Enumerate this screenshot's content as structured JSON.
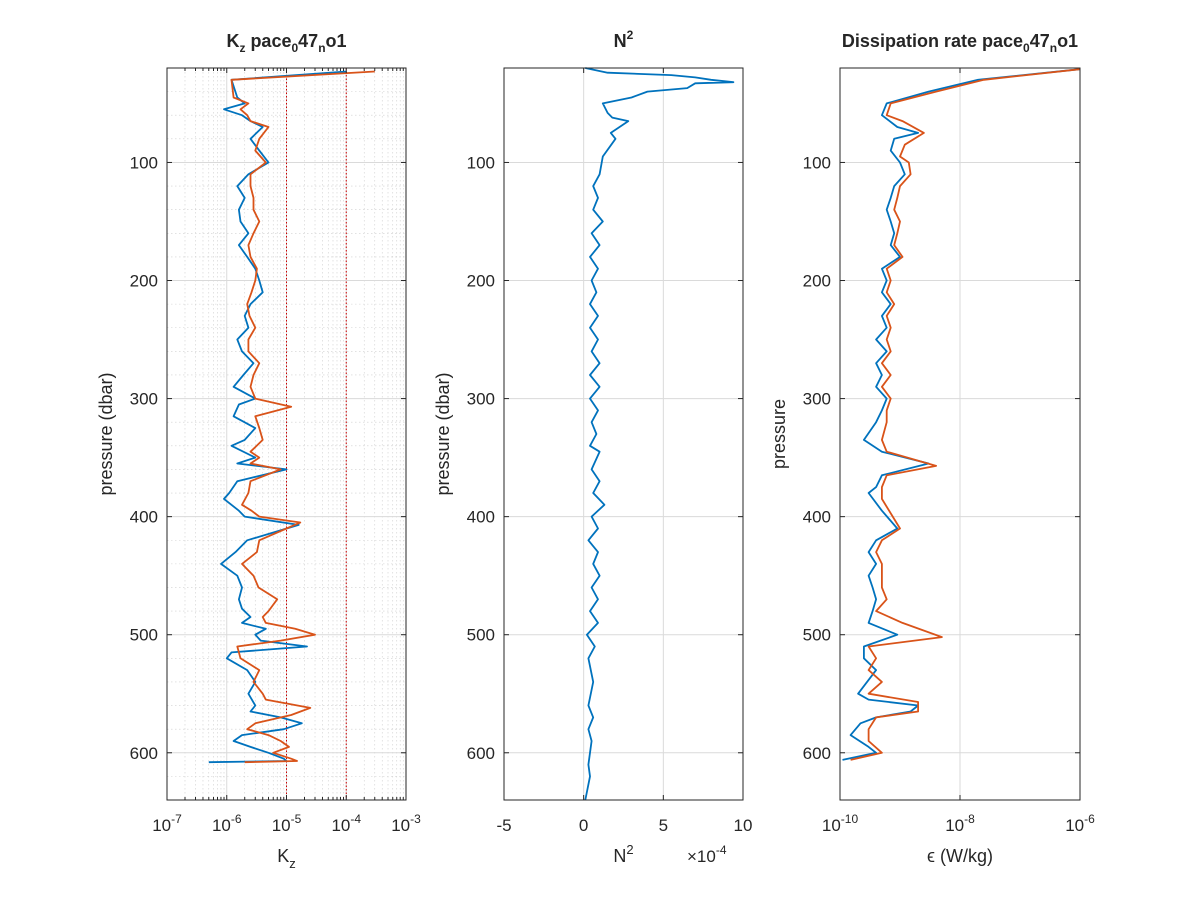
{
  "figure": {
    "background": "#ffffff",
    "series_colors": [
      "#0072bd",
      "#d95319"
    ]
  },
  "chart_data": [
    {
      "type": "line",
      "title": "K",
      "title_sub": "z",
      "title_rest": " pace",
      "title_sub2": "0",
      "title_rest2": "47",
      "title_sub3": "n",
      "title_rest3": "o1",
      "xlabel": "K",
      "xlabel_sub": "z",
      "ylabel": "pressure (dbar)",
      "xscale": "log",
      "xlim": [
        1e-07,
        0.001
      ],
      "xticks": [
        {
          "base": "10",
          "exp": "-7"
        },
        {
          "base": "10",
          "exp": "-6"
        },
        {
          "base": "10",
          "exp": "-5"
        },
        {
          "base": "10",
          "exp": "-4"
        },
        {
          "base": "10",
          "exp": "-3"
        }
      ],
      "ylim": [
        640,
        20
      ],
      "yticks": [
        "100",
        "200",
        "300",
        "400",
        "500",
        "600"
      ],
      "grid": "major and minor (dotted)",
      "reference_lines": {
        "x": [
          1e-05,
          0.0001
        ],
        "color": "#cc0000",
        "style": "dotted"
      },
      "series": [
        {
          "color": "#0072bd",
          "x": [
            0.0001,
            1.2e-06,
            1.5e-06,
            2e-06,
            9e-07,
            1.8e-06,
            2.5e-06,
            4e-06,
            2.5e-06,
            3.5e-06,
            5e-06,
            2.3e-06,
            1.5e-06,
            2e-06,
            1.6e-06,
            1.7e-06,
            2.3e-06,
            1.6e-06,
            2.2e-06,
            3e-06,
            3.5e-06,
            4e-06,
            2.5e-06,
            2e-06,
            2.3e-06,
            1.5e-06,
            1.8e-06,
            2.8e-06,
            1.9e-06,
            1.3e-06,
            3e-06,
            1.6e-06,
            1.3e-06,
            3e-06,
            2e-06,
            1.2e-06,
            3e-06,
            1.5e-06,
            1e-05,
            1.5e-06,
            1.1e-06,
            9e-07,
            1.6e-06,
            2e-06,
            1.6e-05,
            2.2e-06,
            1.4e-06,
            8e-07,
            1.5e-06,
            1.8e-06,
            1.6e-06,
            1.8e-06,
            2.5e-06,
            1.8e-06,
            4.5e-06,
            3e-06,
            3.7e-06,
            2.2e-05,
            1.2e-06,
            1e-06,
            2.2e-06,
            3e-06,
            2.3e-06,
            3e-06,
            2.5e-06,
            8e-06,
            1.8e-05,
            9e-06,
            1.8e-06,
            1.3e-06,
            2.5e-06,
            5e-06,
            9e-06,
            1e-05,
            5e-07
          ],
          "y": [
            23,
            30,
            45,
            50,
            55,
            60,
            65,
            70,
            80,
            90,
            100,
            110,
            120,
            130,
            140,
            150,
            160,
            170,
            180,
            190,
            200,
            210,
            220,
            230,
            240,
            250,
            260,
            270,
            280,
            290,
            300,
            305,
            315,
            325,
            335,
            340,
            350,
            355,
            360,
            370,
            380,
            385,
            395,
            400,
            407,
            420,
            430,
            440,
            450,
            460,
            470,
            478,
            485,
            490,
            495,
            500,
            505,
            510,
            515,
            520,
            530,
            540,
            550,
            560,
            565,
            570,
            575,
            580,
            585,
            590,
            595,
            600,
            605,
            607,
            608
          ]
        },
        {
          "color": "#d95319",
          "x": [
            0.0003,
            1.2e-06,
            1.3e-06,
            2.3e-06,
            1.7e-06,
            2.2e-06,
            2.5e-06,
            5e-06,
            3.5e-06,
            3e-06,
            4.5e-06,
            2.5e-06,
            2.5e-06,
            2.8e-06,
            2.8e-06,
            3.5e-06,
            2.8e-06,
            2.3e-06,
            2.5e-06,
            3.2e-06,
            3e-06,
            2.6e-06,
            2.2e-06,
            2.4e-06,
            3e-06,
            2.3e-06,
            2.3e-06,
            3.5e-06,
            2.8e-06,
            2.5e-06,
            3e-06,
            1.2e-05,
            3e-06,
            3.5e-06,
            4e-06,
            2.5e-06,
            3.5e-06,
            2.5e-06,
            8e-06,
            2.5e-06,
            2.3e-06,
            1.8e-06,
            2.6e-06,
            3.5e-06,
            1.7e-05,
            3.5e-06,
            3.2e-06,
            1.8e-06,
            2.8e-06,
            3.4e-06,
            7e-06,
            5e-06,
            4e-06,
            4.5e-06,
            1.4e-05,
            3e-05,
            8e-06,
            1.5e-06,
            1.7e-06,
            3.5e-06,
            2.8e-06,
            4e-06,
            4.5e-06,
            2.5e-05,
            1.2e-05,
            3e-06,
            2.2e-06,
            5e-06,
            8e-06,
            1.1e-05,
            6e-06,
            1.2e-05,
            1.5e-05,
            2e-06
          ],
          "y": [
            23,
            30,
            45,
            50,
            55,
            60,
            65,
            70,
            80,
            90,
            100,
            110,
            120,
            130,
            140,
            150,
            160,
            170,
            180,
            190,
            200,
            210,
            220,
            230,
            240,
            250,
            260,
            270,
            280,
            290,
            300,
            307,
            315,
            325,
            335,
            345,
            350,
            355,
            360,
            370,
            380,
            390,
            395,
            400,
            405,
            420,
            430,
            440,
            450,
            460,
            470,
            480,
            485,
            490,
            495,
            500,
            505,
            510,
            520,
            530,
            540,
            550,
            555,
            562,
            568,
            575,
            580,
            585,
            590,
            595,
            600,
            605,
            607,
            608
          ]
        }
      ]
    },
    {
      "type": "line",
      "title": "N",
      "title_sup": "2",
      "xlabel": "N",
      "xlabel_sup": "2",
      "x_multiplier": "×10",
      "x_multiplier_exp": "-4",
      "ylabel": "pressure (dbar)",
      "xlim": [
        -5,
        10
      ],
      "xticks": [
        "-5",
        "0",
        "5",
        "10"
      ],
      "ylim": [
        640,
        20
      ],
      "yticks": [
        "100",
        "200",
        "300",
        "400",
        "500",
        "600"
      ],
      "grid": "major",
      "series": [
        {
          "color": "#0072bd",
          "x": [
            0.1,
            1.5,
            5.5,
            7,
            8,
            9.4,
            7,
            6.5,
            4,
            3,
            1.2,
            1.5,
            1.8,
            2.8,
            1.7,
            2,
            1.2,
            1,
            0.6,
            0.9,
            0.6,
            1.2,
            0.5,
            1.0,
            0.4,
            0.9,
            0.5,
            0.8,
            0.4,
            0.9,
            0.4,
            0.9,
            0.5,
            1.0,
            0.4,
            1.0,
            0.4,
            0.9,
            0.5,
            0.8,
            0.4,
            1.0,
            0.5,
            1.0,
            0.6,
            1.3,
            0.5,
            0.9,
            0.3,
            0.9,
            0.6,
            1.0,
            0.5,
            0.9,
            0.4,
            0.9,
            0.2,
            0.7,
            0.3,
            0.6,
            0.3,
            0.6,
            0.3,
            0.5,
            0.4,
            0.3,
            0.4,
            0.1
          ],
          "y": [
            20,
            24,
            26,
            28,
            30,
            32,
            33,
            37,
            40,
            45,
            50,
            58,
            62,
            65,
            75,
            80,
            95,
            110,
            120,
            130,
            140,
            150,
            160,
            170,
            180,
            190,
            200,
            210,
            220,
            230,
            240,
            250,
            260,
            270,
            280,
            290,
            300,
            310,
            320,
            330,
            340,
            345,
            360,
            370,
            380,
            390,
            400,
            410,
            420,
            430,
            440,
            450,
            460,
            470,
            480,
            490,
            500,
            510,
            520,
            540,
            560,
            570,
            580,
            590,
            600,
            610,
            620,
            640
          ]
        }
      ]
    },
    {
      "type": "line",
      "title": "Dissipation rate pace",
      "title_sub": "0",
      "title_rest": "47",
      "title_sub2": "n",
      "title_rest2": "o1",
      "xlabel": "ϵ (W/kg)",
      "ylabel": "pressure",
      "xscale": "log",
      "xlim": [
        1e-10,
        1e-06
      ],
      "xticks": [
        {
          "base": "10",
          "exp": "-10"
        },
        {
          "base": "10",
          "exp": "-8"
        },
        {
          "base": "10",
          "exp": "-6"
        }
      ],
      "ylim": [
        640,
        20
      ],
      "yticks": [
        "100",
        "200",
        "300",
        "400",
        "500",
        "600"
      ],
      "grid": "major",
      "series": [
        {
          "color": "#0072bd",
          "x": [
            1e-06,
            2e-08,
            3e-09,
            6e-10,
            5e-10,
            9e-10,
            2e-09,
            8e-10,
            7e-10,
            1e-09,
            1.2e-09,
            8e-10,
            7e-10,
            6e-10,
            7e-10,
            8e-10,
            7e-10,
            1e-09,
            5e-10,
            6e-10,
            5e-10,
            7e-10,
            5e-10,
            6e-10,
            4e-10,
            6e-10,
            4e-10,
            5e-10,
            4e-10,
            6e-10,
            5e-10,
            4e-10,
            2.5e-10,
            5e-10,
            3e-09,
            5e-10,
            4e-10,
            3e-10,
            5e-10,
            9e-10,
            4e-10,
            3e-10,
            4e-10,
            3e-10,
            3.5e-10,
            4e-10,
            3.5e-10,
            3e-10,
            9e-10,
            2.5e-10,
            2.5e-10,
            4e-10,
            2e-10,
            3e-10,
            2e-09,
            1.5e-09,
            4e-10,
            2.2e-10,
            1.5e-10,
            3e-10,
            4e-10,
            1.1e-10
          ],
          "y": [
            21,
            30,
            40,
            50,
            60,
            70,
            75,
            80,
            90,
            100,
            110,
            120,
            130,
            140,
            150,
            160,
            170,
            180,
            190,
            200,
            210,
            220,
            230,
            240,
            250,
            260,
            270,
            280,
            290,
            300,
            310,
            320,
            335,
            345,
            355,
            365,
            375,
            380,
            395,
            410,
            420,
            430,
            440,
            450,
            460,
            470,
            480,
            490,
            500,
            510,
            520,
            530,
            550,
            555,
            560,
            565,
            570,
            575,
            585,
            595,
            600,
            606
          ]
        },
        {
          "color": "#d95319",
          "x": [
            1e-06,
            2.5e-08,
            4e-09,
            7e-10,
            6e-10,
            1.1e-09,
            2.5e-09,
            1.2e-09,
            1e-09,
            1.4e-09,
            1.5e-09,
            1e-09,
            9e-10,
            8e-10,
            1e-09,
            9e-10,
            8e-10,
            1.1e-09,
            6e-10,
            7e-10,
            6e-10,
            8e-10,
            6e-10,
            7e-10,
            6e-10,
            7e-10,
            5e-10,
            7e-10,
            5e-10,
            7e-10,
            6e-10,
            6e-10,
            5e-10,
            6e-10,
            4e-09,
            6e-10,
            5e-10,
            5e-10,
            1e-09,
            5e-10,
            4e-10,
            5e-10,
            5e-10,
            6e-10,
            4e-10,
            1.1e-09,
            5e-09,
            3e-10,
            4e-10,
            3e-10,
            5e-10,
            3e-10,
            2e-09,
            2e-09,
            4e-10,
            3e-10,
            3e-10,
            5e-10,
            1.5e-10
          ],
          "y": [
            21,
            30,
            40,
            50,
            60,
            65,
            75,
            85,
            95,
            100,
            110,
            120,
            130,
            140,
            150,
            160,
            170,
            180,
            190,
            200,
            210,
            220,
            230,
            240,
            250,
            260,
            270,
            280,
            290,
            300,
            310,
            320,
            335,
            345,
            357,
            365,
            375,
            385,
            410,
            420,
            430,
            440,
            460,
            470,
            480,
            490,
            502,
            510,
            520,
            530,
            540,
            550,
            557,
            565,
            570,
            580,
            590,
            600,
            606
          ]
        }
      ]
    }
  ]
}
